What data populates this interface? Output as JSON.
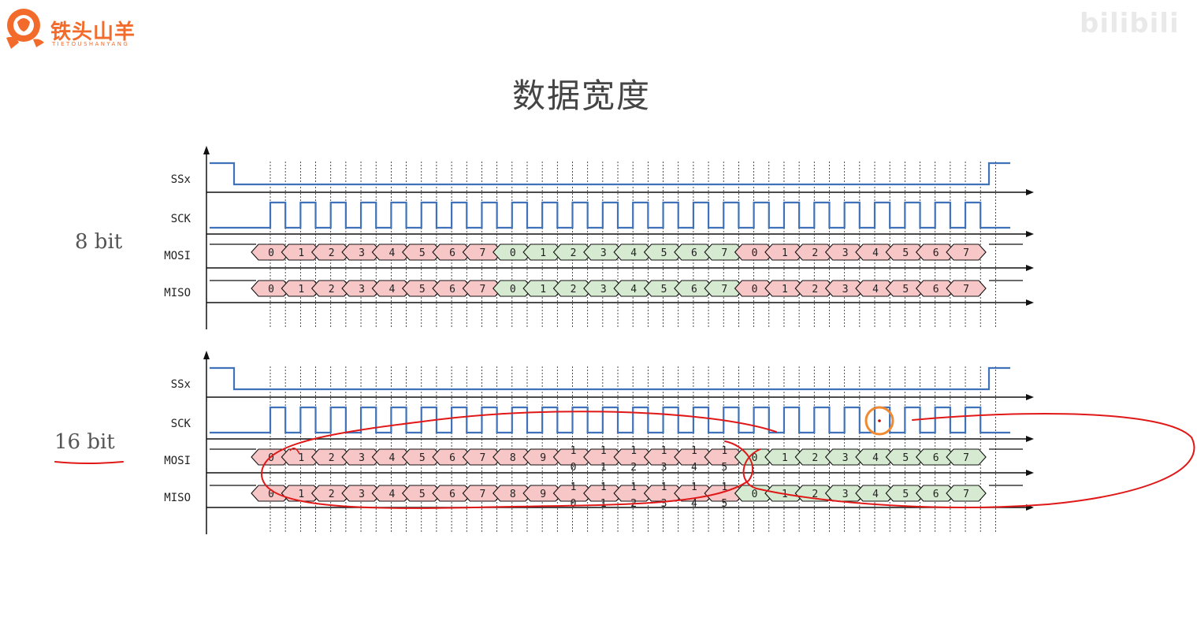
{
  "logo": {
    "name": "铁头山羊",
    "subtitle": "TIETOUSHANYANG"
  },
  "watermark": "bilibili",
  "title": "数据宽度",
  "panels": [
    {
      "width_label": "8 bit",
      "signals": [
        "SSx",
        "SCK",
        "MOSI",
        "MISO"
      ],
      "mosi_bits": [
        "0",
        "1",
        "2",
        "3",
        "4",
        "5",
        "6",
        "7",
        "0",
        "1",
        "2",
        "3",
        "4",
        "5",
        "6",
        "7",
        "0",
        "1",
        "2",
        "3",
        "4",
        "5",
        "6",
        "7"
      ],
      "miso_bits": [
        "0",
        "1",
        "2",
        "3",
        "4",
        "5",
        "6",
        "7",
        "0",
        "1",
        "2",
        "3",
        "4",
        "5",
        "6",
        "7",
        "0",
        "1",
        "2",
        "3",
        "4",
        "5",
        "6",
        "7"
      ],
      "bit_colors": [
        "pink",
        "pink",
        "pink",
        "pink",
        "pink",
        "pink",
        "pink",
        "pink",
        "green",
        "green",
        "green",
        "green",
        "green",
        "green",
        "green",
        "green",
        "pink",
        "pink",
        "pink",
        "pink",
        "pink",
        "pink",
        "pink",
        "pink"
      ]
    },
    {
      "width_label": "16 bit",
      "signals": [
        "SSx",
        "SCK",
        "MOSI",
        "MISO"
      ],
      "mosi_bits": [
        "0",
        "1",
        "2",
        "3",
        "4",
        "5",
        "6",
        "7",
        "8",
        "9",
        "1\n0",
        "1\n1",
        "1\n2",
        "1\n3",
        "1\n4",
        "1\n5",
        "0",
        "1",
        "2",
        "3",
        "4",
        "5",
        "6",
        "7"
      ],
      "miso_bits": [
        "0",
        "1",
        "2",
        "3",
        "4",
        "5",
        "6",
        "7",
        "8",
        "9",
        "1\n0",
        "1\n1",
        "1\n2",
        "1\n3",
        "1\n4",
        "1\n5",
        "0",
        "1",
        "2",
        "3",
        "4",
        "5",
        "6",
        "7"
      ],
      "bit_colors": [
        "pink",
        "pink",
        "pink",
        "pink",
        "pink",
        "pink",
        "pink",
        "pink",
        "pink",
        "pink",
        "pink",
        "pink",
        "pink",
        "pink",
        "pink",
        "pink",
        "green",
        "green",
        "green",
        "green",
        "green",
        "green",
        "green",
        "green"
      ]
    }
  ],
  "colors": {
    "signal": "#3f72b8",
    "pink_fill": "#f7c6c6",
    "green_fill": "#d5ead0",
    "annotation": "#e01818",
    "cursor": "#f08a30",
    "logo": "#f26b2a"
  }
}
